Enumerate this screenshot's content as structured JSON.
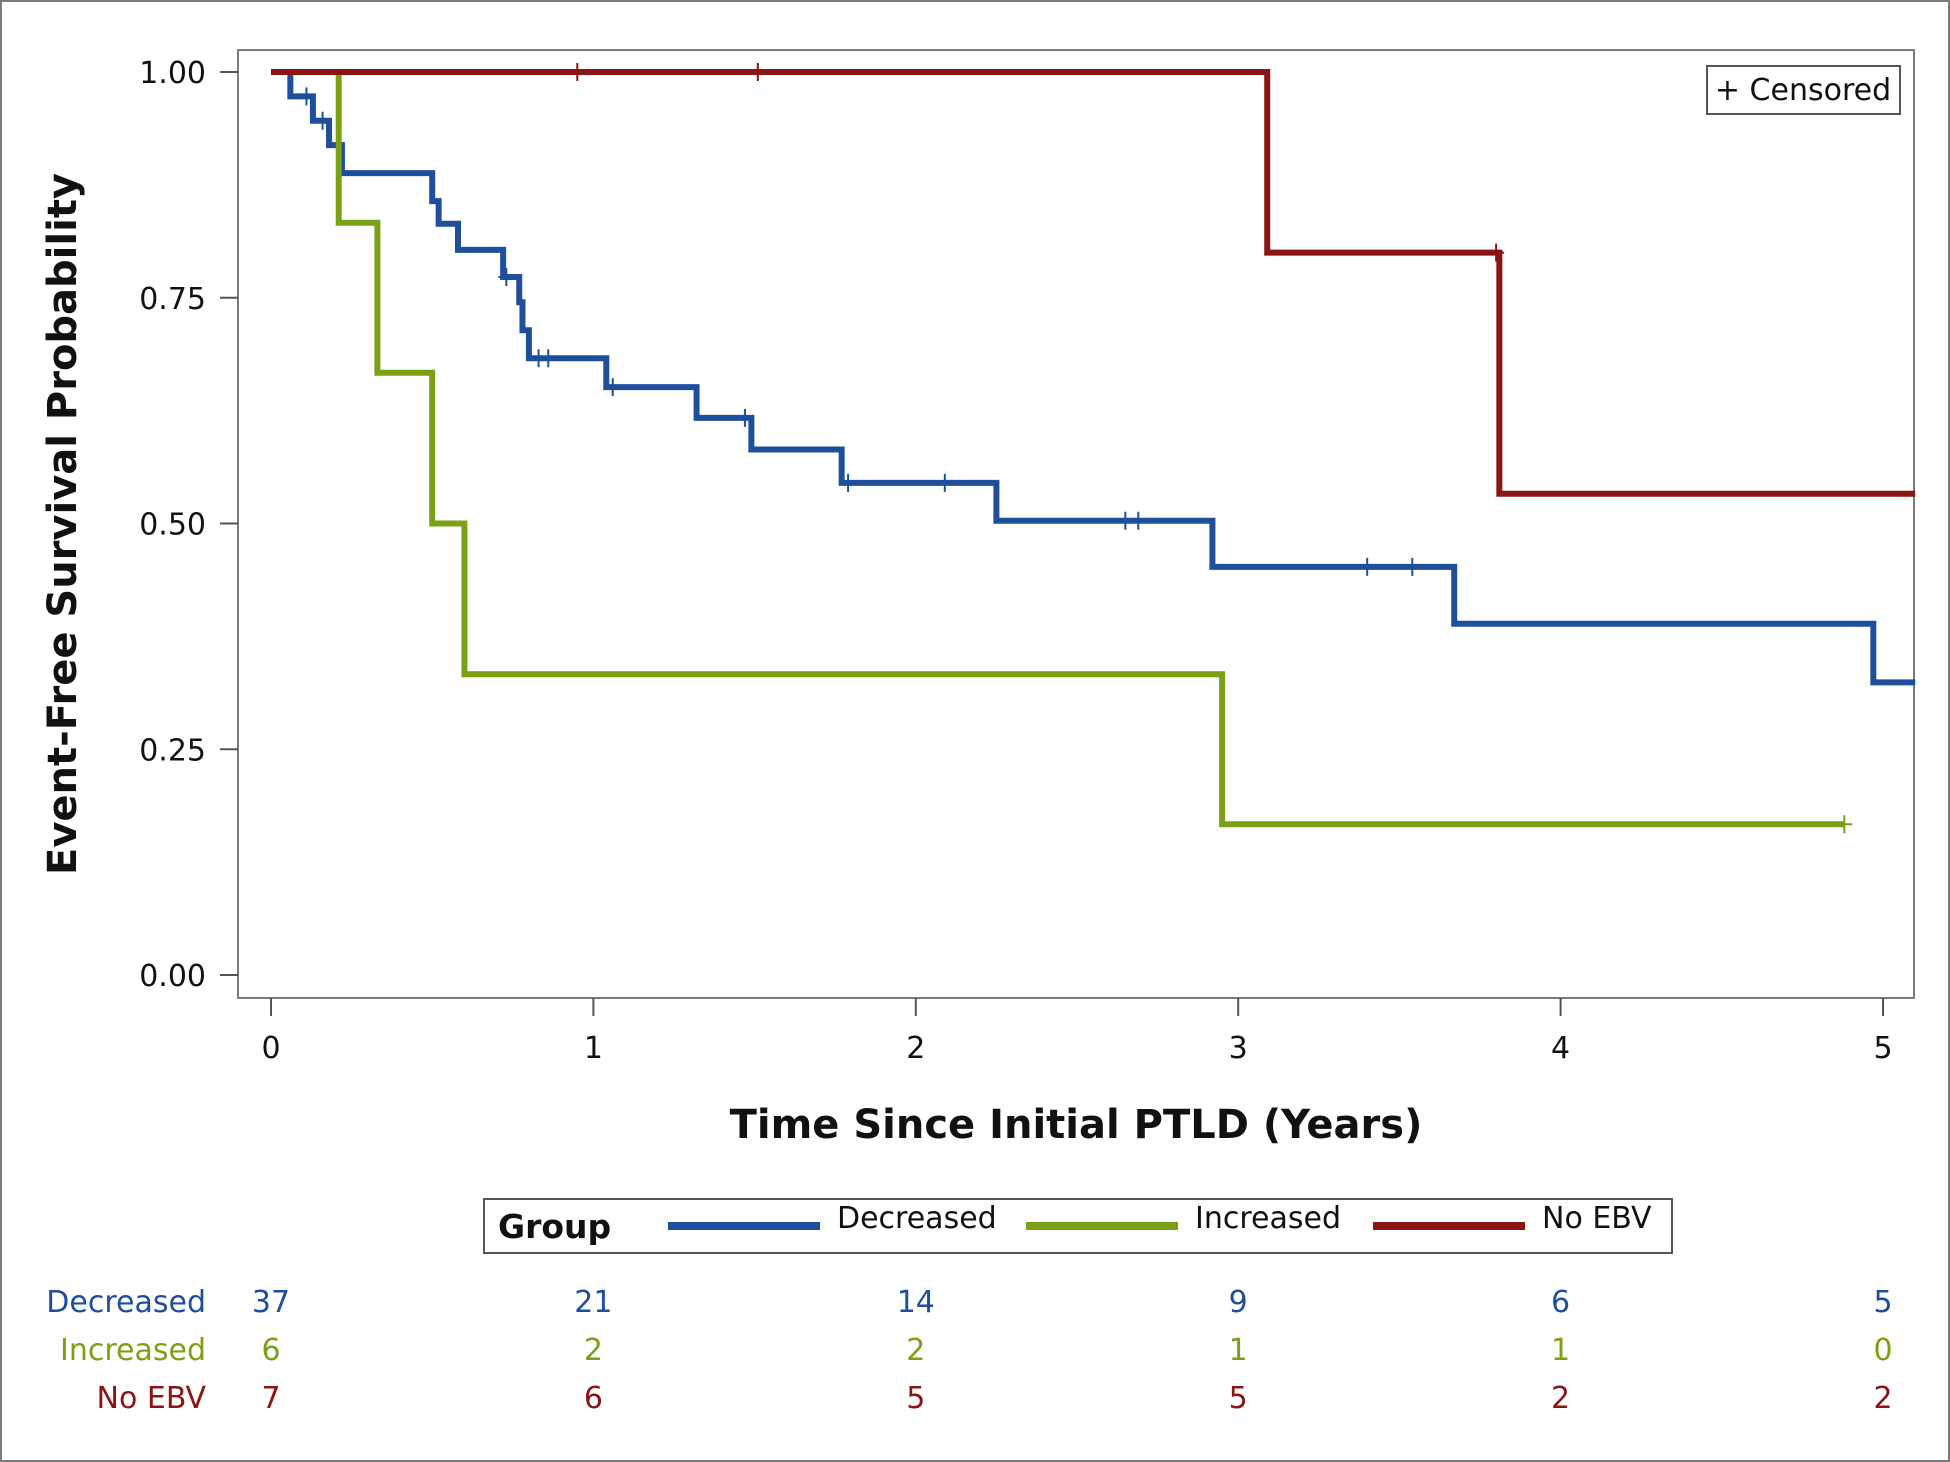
{
  "chart_data": {
    "type": "line",
    "step": true,
    "xlabel": "Time Since Initial PTLD (Years)",
    "ylabel": "Event-Free Survival Probability",
    "xlim": [
      0,
      5.1
    ],
    "ylim": [
      0,
      1.0
    ],
    "x_ticks": [
      0,
      1,
      2,
      3,
      4,
      5
    ],
    "x_tick_labels": [
      "0",
      "1",
      "2",
      "3",
      "4",
      "5"
    ],
    "y_ticks": [
      0,
      0.25,
      0.5,
      0.75,
      1.0
    ],
    "y_tick_labels": [
      "0.00",
      "0.25",
      "0.50",
      "0.75",
      "1.00"
    ],
    "censor_legend": "+ Censored",
    "legend": {
      "title": "Group",
      "placement": "bottom"
    },
    "series": [
      {
        "name": "Decreased",
        "color": "#1f4e9c",
        "x": [
          0,
          0.06,
          0.13,
          0.18,
          0.22,
          0.5,
          0.52,
          0.58,
          0.72,
          0.77,
          0.78,
          0.8,
          1.04,
          1.32,
          1.49,
          1.77,
          2.25,
          2.92,
          3.67,
          4.97,
          5.1
        ],
        "y": [
          1.0,
          0.973,
          0.946,
          0.919,
          0.888,
          0.857,
          0.832,
          0.803,
          0.773,
          0.745,
          0.714,
          0.683,
          0.651,
          0.617,
          0.582,
          0.545,
          0.503,
          0.452,
          0.389,
          0.324,
          0.324
        ],
        "censored_x": [
          0.11,
          0.16,
          0.73,
          0.83,
          0.86,
          1.06,
          1.47,
          1.79,
          2.09,
          2.65,
          2.69,
          3.4,
          3.54
        ],
        "censored_y": [
          0.973,
          0.946,
          0.773,
          0.683,
          0.683,
          0.651,
          0.617,
          0.545,
          0.545,
          0.503,
          0.503,
          0.452,
          0.452
        ]
      },
      {
        "name": "Increased",
        "color": "#7aa116",
        "x": [
          0,
          0.21,
          0.33,
          0.5,
          0.6,
          2.95,
          4.88
        ],
        "y": [
          1.0,
          0.833,
          0.667,
          0.5,
          0.333,
          0.167,
          0.167
        ],
        "censored_x": [
          4.88
        ],
        "censored_y": [
          0.167
        ]
      },
      {
        "name": "No EBV",
        "color": "#8b1414",
        "x": [
          0,
          3.09,
          3.81,
          5.1
        ],
        "y": [
          1.0,
          0.8,
          0.533,
          0.533
        ],
        "censored_x": [
          0.95,
          1.51,
          3.8
        ],
        "censored_y": [
          1.0,
          1.0,
          0.8
        ]
      }
    ],
    "at_risk": {
      "times": [
        0,
        1,
        2,
        3,
        4,
        5
      ],
      "rows": [
        {
          "name": "Decreased",
          "color": "#1f4e9c",
          "values": [
            "37",
            "21",
            "14",
            "9",
            "6",
            "5"
          ]
        },
        {
          "name": "Increased",
          "color": "#7aa116",
          "values": [
            "6",
            "2",
            "2",
            "1",
            "1",
            "0"
          ]
        },
        {
          "name": "No EBV",
          "color": "#8b1414",
          "values": [
            "7",
            "6",
            "5",
            "5",
            "2",
            "2"
          ]
        }
      ]
    }
  }
}
